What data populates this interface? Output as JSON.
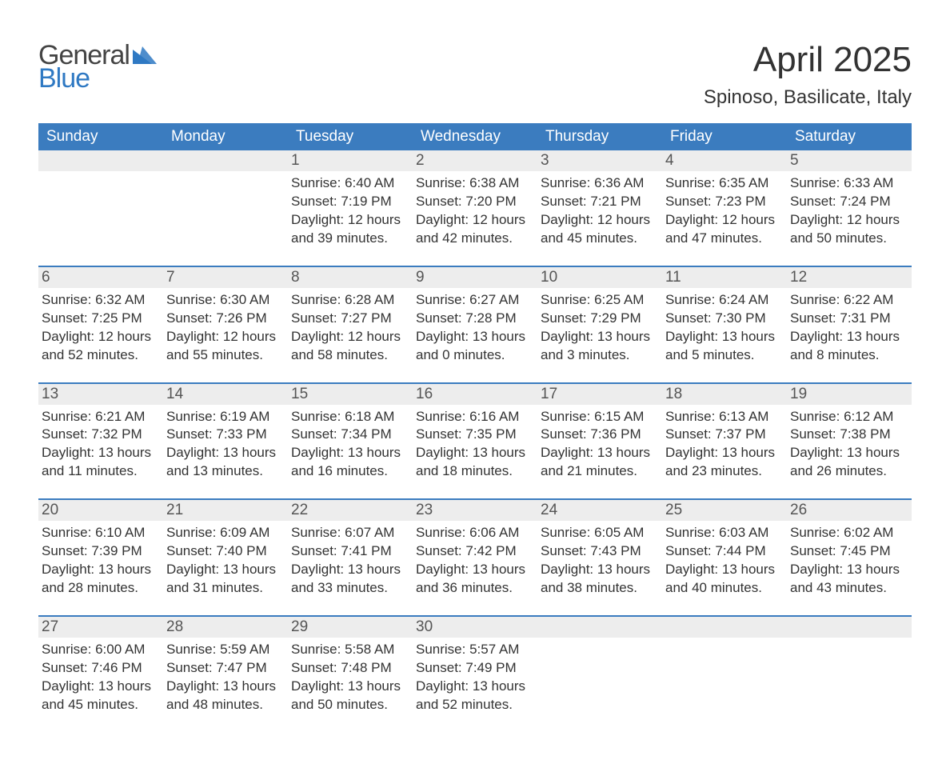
{
  "logo": {
    "line1": "General",
    "line2": "Blue",
    "tri_color": "#2f79c3",
    "text_gray": "#444444"
  },
  "header": {
    "title": "April 2025",
    "location": "Spinoso, Basilicate, Italy"
  },
  "colors": {
    "header_bg": "#3b7cbf",
    "header_text": "#ffffff",
    "daynum_bg": "#ededed",
    "row_divider": "#3b7cbf",
    "body_text": "#333333",
    "page_bg": "#ffffff"
  },
  "weekdays": [
    "Sunday",
    "Monday",
    "Tuesday",
    "Wednesday",
    "Thursday",
    "Friday",
    "Saturday"
  ],
  "weeks": [
    [
      null,
      null,
      {
        "day": "1",
        "sunrise": "Sunrise: 6:40 AM",
        "sunset": "Sunset: 7:19 PM",
        "daylight": "Daylight: 12 hours and 39 minutes."
      },
      {
        "day": "2",
        "sunrise": "Sunrise: 6:38 AM",
        "sunset": "Sunset: 7:20 PM",
        "daylight": "Daylight: 12 hours and 42 minutes."
      },
      {
        "day": "3",
        "sunrise": "Sunrise: 6:36 AM",
        "sunset": "Sunset: 7:21 PM",
        "daylight": "Daylight: 12 hours and 45 minutes."
      },
      {
        "day": "4",
        "sunrise": "Sunrise: 6:35 AM",
        "sunset": "Sunset: 7:23 PM",
        "daylight": "Daylight: 12 hours and 47 minutes."
      },
      {
        "day": "5",
        "sunrise": "Sunrise: 6:33 AM",
        "sunset": "Sunset: 7:24 PM",
        "daylight": "Daylight: 12 hours and 50 minutes."
      }
    ],
    [
      {
        "day": "6",
        "sunrise": "Sunrise: 6:32 AM",
        "sunset": "Sunset: 7:25 PM",
        "daylight": "Daylight: 12 hours and 52 minutes."
      },
      {
        "day": "7",
        "sunrise": "Sunrise: 6:30 AM",
        "sunset": "Sunset: 7:26 PM",
        "daylight": "Daylight: 12 hours and 55 minutes."
      },
      {
        "day": "8",
        "sunrise": "Sunrise: 6:28 AM",
        "sunset": "Sunset: 7:27 PM",
        "daylight": "Daylight: 12 hours and 58 minutes."
      },
      {
        "day": "9",
        "sunrise": "Sunrise: 6:27 AM",
        "sunset": "Sunset: 7:28 PM",
        "daylight": "Daylight: 13 hours and 0 minutes."
      },
      {
        "day": "10",
        "sunrise": "Sunrise: 6:25 AM",
        "sunset": "Sunset: 7:29 PM",
        "daylight": "Daylight: 13 hours and 3 minutes."
      },
      {
        "day": "11",
        "sunrise": "Sunrise: 6:24 AM",
        "sunset": "Sunset: 7:30 PM",
        "daylight": "Daylight: 13 hours and 5 minutes."
      },
      {
        "day": "12",
        "sunrise": "Sunrise: 6:22 AM",
        "sunset": "Sunset: 7:31 PM",
        "daylight": "Daylight: 13 hours and 8 minutes."
      }
    ],
    [
      {
        "day": "13",
        "sunrise": "Sunrise: 6:21 AM",
        "sunset": "Sunset: 7:32 PM",
        "daylight": "Daylight: 13 hours and 11 minutes."
      },
      {
        "day": "14",
        "sunrise": "Sunrise: 6:19 AM",
        "sunset": "Sunset: 7:33 PM",
        "daylight": "Daylight: 13 hours and 13 minutes."
      },
      {
        "day": "15",
        "sunrise": "Sunrise: 6:18 AM",
        "sunset": "Sunset: 7:34 PM",
        "daylight": "Daylight: 13 hours and 16 minutes."
      },
      {
        "day": "16",
        "sunrise": "Sunrise: 6:16 AM",
        "sunset": "Sunset: 7:35 PM",
        "daylight": "Daylight: 13 hours and 18 minutes."
      },
      {
        "day": "17",
        "sunrise": "Sunrise: 6:15 AM",
        "sunset": "Sunset: 7:36 PM",
        "daylight": "Daylight: 13 hours and 21 minutes."
      },
      {
        "day": "18",
        "sunrise": "Sunrise: 6:13 AM",
        "sunset": "Sunset: 7:37 PM",
        "daylight": "Daylight: 13 hours and 23 minutes."
      },
      {
        "day": "19",
        "sunrise": "Sunrise: 6:12 AM",
        "sunset": "Sunset: 7:38 PM",
        "daylight": "Daylight: 13 hours and 26 minutes."
      }
    ],
    [
      {
        "day": "20",
        "sunrise": "Sunrise: 6:10 AM",
        "sunset": "Sunset: 7:39 PM",
        "daylight": "Daylight: 13 hours and 28 minutes."
      },
      {
        "day": "21",
        "sunrise": "Sunrise: 6:09 AM",
        "sunset": "Sunset: 7:40 PM",
        "daylight": "Daylight: 13 hours and 31 minutes."
      },
      {
        "day": "22",
        "sunrise": "Sunrise: 6:07 AM",
        "sunset": "Sunset: 7:41 PM",
        "daylight": "Daylight: 13 hours and 33 minutes."
      },
      {
        "day": "23",
        "sunrise": "Sunrise: 6:06 AM",
        "sunset": "Sunset: 7:42 PM",
        "daylight": "Daylight: 13 hours and 36 minutes."
      },
      {
        "day": "24",
        "sunrise": "Sunrise: 6:05 AM",
        "sunset": "Sunset: 7:43 PM",
        "daylight": "Daylight: 13 hours and 38 minutes."
      },
      {
        "day": "25",
        "sunrise": "Sunrise: 6:03 AM",
        "sunset": "Sunset: 7:44 PM",
        "daylight": "Daylight: 13 hours and 40 minutes."
      },
      {
        "day": "26",
        "sunrise": "Sunrise: 6:02 AM",
        "sunset": "Sunset: 7:45 PM",
        "daylight": "Daylight: 13 hours and 43 minutes."
      }
    ],
    [
      {
        "day": "27",
        "sunrise": "Sunrise: 6:00 AM",
        "sunset": "Sunset: 7:46 PM",
        "daylight": "Daylight: 13 hours and 45 minutes."
      },
      {
        "day": "28",
        "sunrise": "Sunrise: 5:59 AM",
        "sunset": "Sunset: 7:47 PM",
        "daylight": "Daylight: 13 hours and 48 minutes."
      },
      {
        "day": "29",
        "sunrise": "Sunrise: 5:58 AM",
        "sunset": "Sunset: 7:48 PM",
        "daylight": "Daylight: 13 hours and 50 minutes."
      },
      {
        "day": "30",
        "sunrise": "Sunrise: 5:57 AM",
        "sunset": "Sunset: 7:49 PM",
        "daylight": "Daylight: 13 hours and 52 minutes."
      },
      null,
      null,
      null
    ]
  ]
}
